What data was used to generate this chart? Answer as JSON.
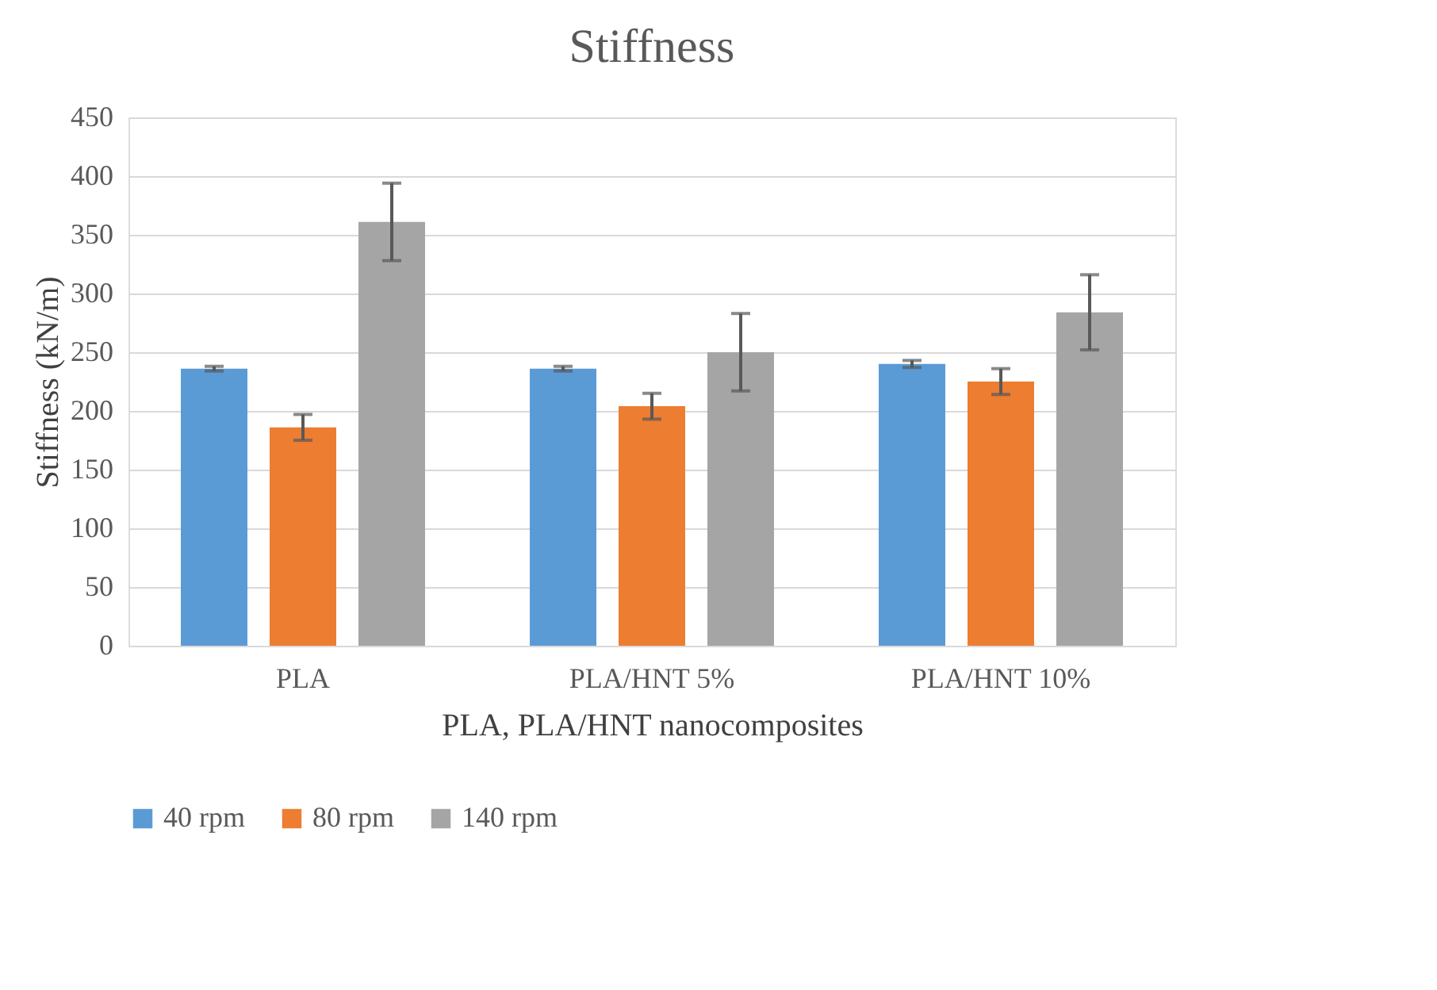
{
  "chart_data": {
    "type": "bar",
    "title": "Stiffness",
    "xlabel": "PLA, PLA/HNT nanocomposites",
    "ylabel": "Stiffness  (kN/m)",
    "categories": [
      "PLA",
      "PLA/HNT 5%",
      "PLA/HNT 10%"
    ],
    "series": [
      {
        "name": "40 rpm",
        "color": "#5b9bd5",
        "values": [
          236,
          236,
          240
        ],
        "errors": [
          2,
          2,
          3
        ]
      },
      {
        "name": "80 rpm",
        "color": "#ed7d31",
        "values": [
          186,
          204,
          225
        ],
        "errors": [
          11,
          11,
          11
        ]
      },
      {
        "name": "140 rpm",
        "color": "#a5a5a5",
        "values": [
          361,
          250,
          284
        ],
        "errors": [
          33,
          33,
          32
        ]
      }
    ],
    "ylim": [
      0,
      450
    ],
    "yticks": [
      0,
      50,
      100,
      150,
      200,
      250,
      300,
      350,
      400,
      450
    ],
    "grid": "y",
    "legend": "bottom"
  }
}
